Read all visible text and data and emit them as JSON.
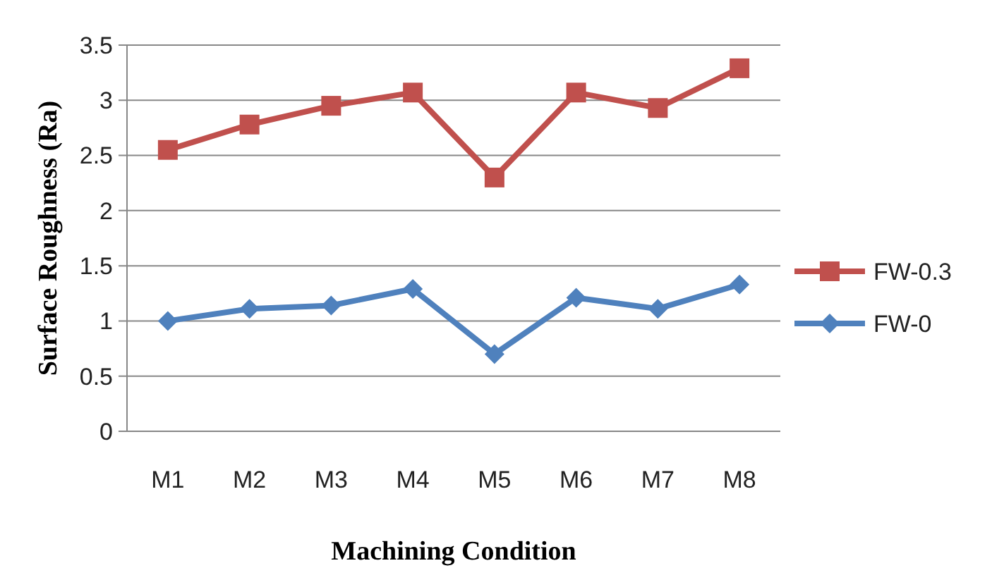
{
  "chart_data": {
    "type": "line",
    "xlabel": "Machining Condition",
    "ylabel": "Surface Roughness (Ra)",
    "categories": [
      "M1",
      "M2",
      "M3",
      "M4",
      "M5",
      "M6",
      "M7",
      "M8"
    ],
    "series": [
      {
        "name": "FW-0.3",
        "color": "#c0504d",
        "marker": "square",
        "values": [
          2.55,
          2.78,
          2.95,
          3.07,
          2.3,
          3.07,
          2.93,
          3.29
        ]
      },
      {
        "name": "FW-0",
        "color": "#4f81bd",
        "marker": "diamond",
        "values": [
          1.0,
          1.11,
          1.14,
          1.29,
          0.7,
          1.21,
          1.11,
          1.33
        ]
      }
    ],
    "ylim": [
      0,
      3.5
    ],
    "yticks": [
      0,
      {
        "value": 0.5,
        "label": "0.5"
      },
      1,
      {
        "value": 1.5,
        "label": "1.5"
      },
      2,
      {
        "value": 2.5,
        "label": "2.5"
      },
      3,
      {
        "value": 3.5,
        "label": "3.5"
      }
    ],
    "grid": "y",
    "legend": "right"
  }
}
